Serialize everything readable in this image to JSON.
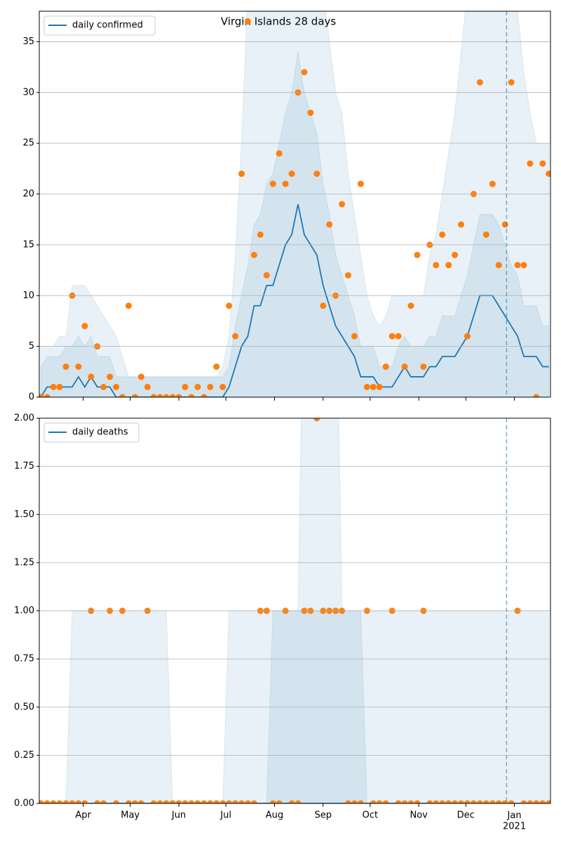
{
  "chart_data": [
    {
      "type": "line",
      "title": "Virgin Islands 28 days",
      "x": [
        4,
        8,
        12,
        16,
        20,
        24,
        28,
        32,
        36,
        40,
        44,
        48,
        52,
        56,
        60,
        64,
        68,
        72,
        76,
        80,
        84,
        88,
        92,
        96,
        100,
        104,
        108,
        112,
        116,
        120,
        124,
        128,
        132,
        136,
        140,
        144,
        148,
        152,
        156,
        160,
        164,
        168,
        172,
        176,
        180,
        184,
        188,
        192,
        196,
        200,
        204,
        208,
        212,
        216,
        220,
        224,
        228,
        232,
        236,
        240,
        244,
        248,
        252,
        256,
        260,
        264,
        268,
        272,
        276,
        280,
        284,
        288,
        292,
        296,
        300,
        304,
        308,
        312,
        316,
        320,
        324,
        328
      ],
      "xlim": [
        3,
        329
      ],
      "xticks": [
        31,
        61,
        92,
        122,
        153,
        184,
        214,
        245,
        275,
        306
      ],
      "ylim": [
        0,
        38
      ],
      "yticks": [
        0,
        5,
        10,
        15,
        20,
        25,
        30,
        35
      ],
      "grid": true,
      "legend": "upper left",
      "vline": 301,
      "bands": [
        {
          "color": "#1f77b4",
          "upper": [
            5,
            5,
            5,
            6,
            6,
            11,
            11,
            11,
            10,
            9,
            8,
            7,
            6,
            4,
            2,
            2,
            2,
            2,
            2,
            2,
            2,
            2,
            2,
            2,
            2,
            2,
            2,
            2,
            2,
            3,
            6,
            14,
            25,
            40,
            40,
            40,
            40,
            40,
            40,
            40,
            40,
            40,
            40,
            40,
            40,
            40,
            35,
            30,
            28,
            22,
            18,
            14,
            10,
            8,
            7,
            8,
            10,
            10,
            10,
            10,
            10,
            10,
            14,
            16,
            20,
            24,
            28,
            34,
            40,
            40,
            40,
            40,
            40,
            40,
            40,
            40,
            38,
            32,
            28,
            25,
            25,
            25
          ]
        },
        {
          "color": "#1f77b4",
          "upper": [
            3,
            4,
            4,
            4,
            5,
            5,
            6,
            5,
            6,
            4,
            4,
            4,
            2,
            2,
            2,
            2,
            2,
            2,
            2,
            2,
            2,
            2,
            2,
            2,
            2,
            2,
            2,
            2,
            2,
            2,
            3,
            7,
            10,
            13,
            17,
            18,
            21,
            22,
            25,
            28,
            30,
            34,
            30,
            28,
            26,
            21,
            18,
            14,
            12,
            10,
            8,
            5,
            5,
            5,
            3,
            3,
            3,
            5,
            6,
            5,
            5,
            5,
            6,
            6,
            8,
            8,
            8,
            10,
            12,
            15,
            18,
            18,
            18,
            17,
            15,
            13,
            12,
            9,
            9,
            9,
            7,
            7
          ]
        }
      ],
      "series": [
        {
          "name": "daily confirmed",
          "color": "#1f77b4",
          "values": [
            0,
            1,
            1,
            1,
            1,
            1,
            2,
            1,
            2,
            1,
            1,
            1,
            0,
            0,
            0,
            0,
            0,
            0,
            0,
            0,
            0,
            0,
            0,
            0,
            0,
            0,
            0,
            0,
            0,
            0,
            1,
            3,
            5,
            6,
            9,
            9,
            11,
            11,
            13,
            15,
            16,
            19,
            16,
            15,
            14,
            11,
            9,
            7,
            6,
            5,
            4,
            2,
            2,
            2,
            1,
            1,
            1,
            2,
            3,
            2,
            2,
            2,
            3,
            3,
            4,
            4,
            4,
            5,
            6,
            8,
            10,
            10,
            10,
            9,
            8,
            7,
            6,
            4,
            4,
            4,
            3,
            3
          ]
        },
        {
          "color": "#ff7f0e",
          "marker": "o",
          "values": [
            0,
            0,
            1,
            1,
            3,
            10,
            3,
            7,
            2,
            5,
            1,
            2,
            1,
            0,
            9,
            0,
            2,
            1,
            0,
            0,
            0,
            0,
            0,
            1,
            0,
            1,
            0,
            1,
            3,
            1,
            9,
            6,
            22,
            37,
            14,
            16,
            12,
            21,
            24,
            21,
            22,
            30,
            32,
            28,
            22,
            9,
            17,
            10,
            19,
            12,
            6,
            21,
            1,
            1,
            1,
            3,
            6,
            6,
            3,
            9,
            14,
            3,
            15,
            13,
            16,
            13,
            14,
            17,
            6,
            20,
            31,
            16,
            21,
            13,
            17,
            31,
            13,
            13,
            23,
            0,
            23,
            22
          ]
        }
      ]
    },
    {
      "type": "line",
      "x": [
        4,
        8,
        12,
        16,
        20,
        24,
        28,
        32,
        36,
        40,
        44,
        48,
        52,
        56,
        60,
        64,
        68,
        72,
        76,
        80,
        84,
        88,
        92,
        96,
        100,
        104,
        108,
        112,
        116,
        120,
        124,
        128,
        132,
        136,
        140,
        144,
        148,
        152,
        156,
        160,
        164,
        168,
        172,
        176,
        180,
        184,
        188,
        192,
        196,
        200,
        204,
        208,
        212,
        216,
        220,
        224,
        228,
        232,
        236,
        240,
        244,
        248,
        252,
        256,
        260,
        264,
        268,
        272,
        276,
        280,
        284,
        288,
        292,
        296,
        300,
        304,
        308,
        312,
        316,
        320,
        324,
        328
      ],
      "xlim": [
        3,
        329
      ],
      "xticks": [
        {
          "value": 31,
          "label": "Apr"
        },
        {
          "value": 61,
          "label": "May"
        },
        {
          "value": 92,
          "label": "Jun"
        },
        {
          "value": 122,
          "label": "Jul"
        },
        {
          "value": 153,
          "label": "Aug"
        },
        {
          "value": 184,
          "label": "Sep"
        },
        {
          "value": 214,
          "label": "Oct"
        },
        {
          "value": 245,
          "label": "Nov"
        },
        {
          "value": 275,
          "label": "Dec"
        },
        {
          "value": 306,
          "label": "Jan\n2021"
        }
      ],
      "ylim": [
        0,
        2
      ],
      "yticks": [
        {
          "value": 0,
          "label": "0.00"
        },
        {
          "value": 0.25,
          "label": "0.25"
        },
        {
          "value": 0.5,
          "label": "0.50"
        },
        {
          "value": 0.75,
          "label": "0.75"
        },
        {
          "value": 1,
          "label": "1.00"
        },
        {
          "value": 1.25,
          "label": "1.25"
        },
        {
          "value": 1.5,
          "label": "1.50"
        },
        {
          "value": 1.75,
          "label": "1.75"
        },
        {
          "value": 2,
          "label": "2.00"
        }
      ],
      "grid": true,
      "legend": "upper left",
      "vline": 301,
      "bands": [
        {
          "color": "#1f77b4",
          "upper": [
            0,
            0,
            0,
            0,
            0,
            1,
            1,
            1,
            1,
            1,
            1,
            1,
            1,
            1,
            1,
            1,
            1,
            1,
            1,
            1,
            1,
            0,
            0,
            0,
            0,
            0,
            0,
            0,
            0,
            0,
            1,
            1,
            1,
            1,
            1,
            1,
            1,
            1,
            1,
            1,
            1,
            1,
            3,
            3,
            3,
            3,
            3,
            3,
            1,
            1,
            1,
            1,
            1,
            1,
            1,
            1,
            1,
            1,
            1,
            1,
            1,
            1,
            1,
            1,
            1,
            1,
            1,
            1,
            1,
            1,
            1,
            1,
            1,
            1,
            1,
            1,
            1,
            1,
            1,
            1,
            1,
            1
          ]
        },
        {
          "color": "#1f77b4",
          "upper": [
            0,
            0,
            0,
            0,
            0,
            0,
            0,
            0,
            0,
            0,
            0,
            0,
            0,
            0,
            0,
            0,
            0,
            0,
            0,
            0,
            0,
            0,
            0,
            0,
            0,
            0,
            0,
            0,
            0,
            0,
            0,
            0,
            0,
            0,
            0,
            0,
            0,
            1,
            1,
            1,
            1,
            1,
            1,
            1,
            1,
            1,
            1,
            1,
            1,
            1,
            1,
            1,
            0,
            0,
            0,
            0,
            0,
            0,
            0,
            0,
            0,
            0,
            0,
            0,
            0,
            0,
            0,
            0,
            0,
            0,
            0,
            0,
            0,
            0,
            0,
            0,
            0,
            0,
            0,
            0,
            0,
            0
          ]
        }
      ],
      "series": [
        {
          "name": "daily deaths",
          "color": "#1f77b4",
          "values": [
            0,
            0,
            0,
            0,
            0,
            0,
            0,
            0,
            0,
            0,
            0,
            0,
            0,
            0,
            0,
            0,
            0,
            0,
            0,
            0,
            0,
            0,
            0,
            0,
            0,
            0,
            0,
            0,
            0,
            0,
            0,
            0,
            0,
            0,
            0,
            0,
            0,
            0,
            0,
            0,
            0,
            0,
            0,
            0,
            0,
            0,
            0,
            0,
            0,
            0,
            0,
            0,
            0,
            0,
            0,
            0,
            0,
            0,
            0,
            0,
            0,
            0,
            0,
            0,
            0,
            0,
            0,
            0,
            0,
            0,
            0,
            0,
            0,
            0,
            0,
            0,
            0,
            0,
            0,
            0,
            0,
            0
          ]
        },
        {
          "color": "#ff7f0e",
          "marker": "o",
          "values": [
            0,
            0,
            0,
            0,
            0,
            0,
            0,
            0,
            1,
            0,
            0,
            1,
            0,
            1,
            0,
            0,
            0,
            1,
            0,
            0,
            0,
            0,
            0,
            0,
            0,
            0,
            0,
            0,
            0,
            0,
            0,
            0,
            0,
            0,
            0,
            1,
            1,
            0,
            0,
            1,
            0,
            0,
            1,
            1,
            2,
            1,
            1,
            1,
            1,
            0,
            0,
            0,
            1,
            0,
            0,
            0,
            1,
            0,
            0,
            0,
            0,
            1,
            0,
            0,
            0,
            0,
            0,
            0,
            0,
            0,
            0,
            0,
            0,
            0,
            0,
            0,
            1,
            0,
            0,
            0,
            0,
            0
          ]
        }
      ]
    }
  ]
}
